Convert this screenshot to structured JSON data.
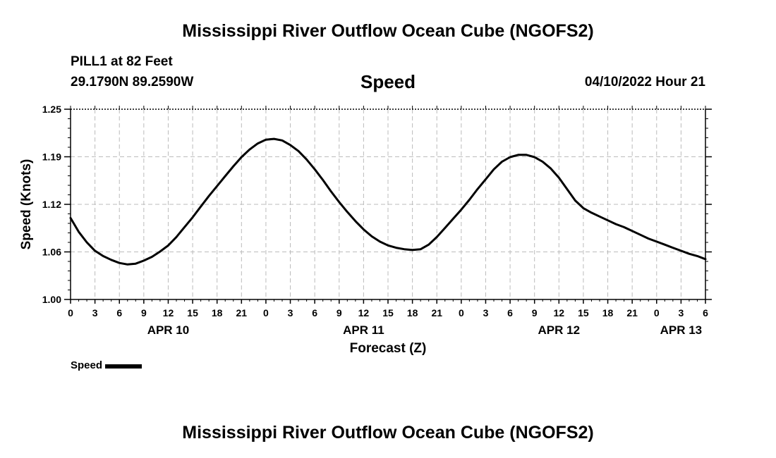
{
  "header": {
    "main_title": "Mississippi River Outflow Ocean Cube (NGOFS2)",
    "station": "PILL1 at 82 Feet",
    "coordinates": "29.1790N  89.2590W",
    "chart_title": "Speed",
    "datetime": "04/10/2022 Hour 21"
  },
  "footer": {
    "main_title": "Mississippi River Outflow Ocean Cube (NGOFS2)"
  },
  "legend": {
    "label": "Speed"
  },
  "chart_data": {
    "type": "line",
    "title": "Speed",
    "xlabel": "Forecast (Z)",
    "ylabel": "Speed (Knots)",
    "ylim": [
      1.0,
      1.25
    ],
    "xlim": [
      0,
      78
    ],
    "x_unit": "hours since APR 10 00Z",
    "y_ticks": [
      "1.00",
      "1.06",
      "1.12",
      "1.19",
      "1.25"
    ],
    "y_tick_values": [
      1.0,
      1.0625,
      1.125,
      1.1875,
      1.25
    ],
    "x_tick_labels": [
      "0",
      "3",
      "6",
      "9",
      "12",
      "15",
      "18",
      "21",
      "0",
      "3",
      "6",
      "9",
      "12",
      "15",
      "18",
      "21",
      "0",
      "3",
      "6",
      "9",
      "12",
      "15",
      "18",
      "21",
      "0",
      "3",
      "6"
    ],
    "day_labels": [
      {
        "label": "APR 10",
        "hour": 12
      },
      {
        "label": "APR 11",
        "hour": 36
      },
      {
        "label": "APR 12",
        "hour": 60
      },
      {
        "label": "APR 13",
        "hour": 75
      }
    ],
    "grid": true,
    "series": [
      {
        "name": "Speed",
        "color": "#000000",
        "x": [
          0,
          1,
          2,
          3,
          4,
          5,
          6,
          7,
          8,
          9,
          10,
          11,
          12,
          13,
          14,
          15,
          16,
          17,
          18,
          19,
          20,
          21,
          22,
          23,
          24,
          25,
          26,
          27,
          28,
          29,
          30,
          31,
          32,
          33,
          34,
          35,
          36,
          37,
          38,
          39,
          40,
          41,
          42,
          43,
          44,
          45,
          46,
          47,
          48,
          49,
          50,
          51,
          52,
          53,
          54,
          55,
          56,
          57,
          58,
          59,
          60,
          61,
          62,
          63,
          64,
          65,
          66,
          67,
          68,
          69,
          70,
          71,
          72,
          73,
          74,
          75,
          76,
          77,
          78
        ],
        "values": [
          1.107,
          1.089,
          1.075,
          1.064,
          1.057,
          1.052,
          1.048,
          1.046,
          1.047,
          1.051,
          1.056,
          1.063,
          1.071,
          1.082,
          1.095,
          1.108,
          1.122,
          1.136,
          1.149,
          1.162,
          1.175,
          1.187,
          1.197,
          1.205,
          1.21,
          1.211,
          1.209,
          1.203,
          1.195,
          1.184,
          1.171,
          1.157,
          1.142,
          1.128,
          1.115,
          1.103,
          1.092,
          1.083,
          1.076,
          1.071,
          1.068,
          1.066,
          1.065,
          1.066,
          1.072,
          1.082,
          1.094,
          1.106,
          1.118,
          1.131,
          1.145,
          1.158,
          1.171,
          1.181,
          1.187,
          1.19,
          1.19,
          1.187,
          1.181,
          1.172,
          1.16,
          1.145,
          1.13,
          1.12,
          1.114,
          1.109,
          1.104,
          1.099,
          1.095,
          1.09,
          1.085,
          1.08,
          1.076,
          1.072,
          1.068,
          1.064,
          1.06,
          1.057,
          1.053
        ]
      }
    ]
  }
}
